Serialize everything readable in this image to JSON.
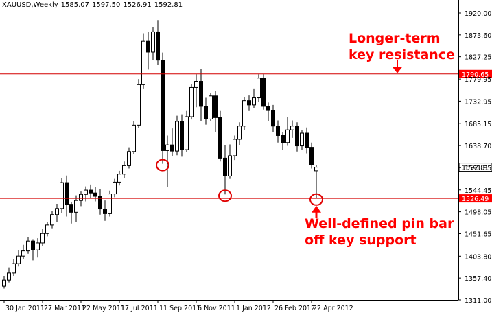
{
  "header": {
    "symbol": "XAUUSD,Weekly",
    "open": "1585.07",
    "high": "1597.50",
    "low": "1526.91",
    "close": "1592.81"
  },
  "annotations": {
    "resistance_line1": "Longer-term",
    "resistance_line2": "key resistance",
    "support_line1": "Well-defined pin bar",
    "support_line2": "off key support"
  },
  "colors": {
    "candle_outline": "#000000",
    "bull_fill": "#ffffff",
    "bear_fill": "#000000",
    "level_line": "#d40000",
    "annotation": "#ff0000",
    "price_tag": "#ff0000"
  },
  "chart_data": {
    "type": "candlestick",
    "title": "XAUUSD,Weekly",
    "ylim": [
      1311.0,
      1920.0
    ],
    "yticks": [
      "1920.00",
      "1873.60",
      "1827.25",
      "1779.95",
      "1732.95",
      "1685.15",
      "1638.70",
      "1591.85",
      "1544.45",
      "1498.05",
      "1451.65",
      "1403.80",
      "1357.40",
      "1311.00"
    ],
    "xticks": [
      {
        "index": 0,
        "label": "30 Jan 2011"
      },
      {
        "index": 8,
        "label": "27 Mar 2011"
      },
      {
        "index": 16,
        "label": "22 May 2011"
      },
      {
        "index": 24,
        "label": "17 Jul 2011"
      },
      {
        "index": 32,
        "label": "11 Sep 2011"
      },
      {
        "index": 40,
        "label": "6 Nov 2011"
      },
      {
        "index": 48,
        "label": "1 Jan 2012"
      },
      {
        "index": 56,
        "label": "26 Feb 2012"
      },
      {
        "index": 64,
        "label": "22 Apr 2012"
      }
    ],
    "levels": [
      {
        "name": "resistance",
        "value": 1790.65,
        "tag": "1790.65"
      },
      {
        "name": "support",
        "value": 1526.49,
        "tag": "1526.49"
      }
    ],
    "current_price": {
      "value": 1592.81,
      "tag": "1592.81"
    },
    "pin_bar_markers": [
      33,
      46,
      65
    ],
    "ohlc": [
      [
        1340,
        1362,
        1335,
        1353
      ],
      [
        1353,
        1380,
        1348,
        1368
      ],
      [
        1368,
        1398,
        1362,
        1388
      ],
      [
        1388,
        1416,
        1382,
        1404
      ],
      [
        1404,
        1428,
        1398,
        1415
      ],
      [
        1415,
        1445,
        1409,
        1436
      ],
      [
        1436,
        1440,
        1395,
        1417
      ],
      [
        1417,
        1442,
        1401,
        1432
      ],
      [
        1432,
        1462,
        1425,
        1452
      ],
      [
        1452,
        1476,
        1446,
        1470
      ],
      [
        1470,
        1500,
        1463,
        1492
      ],
      [
        1492,
        1515,
        1476,
        1505
      ],
      [
        1505,
        1570,
        1496,
        1560
      ],
      [
        1560,
        1575,
        1488,
        1514
      ],
      [
        1514,
        1518,
        1473,
        1497
      ],
      [
        1497,
        1533,
        1476,
        1522
      ],
      [
        1522,
        1541,
        1510,
        1535
      ],
      [
        1535,
        1552,
        1520,
        1544
      ],
      [
        1544,
        1556,
        1528,
        1538
      ],
      [
        1538,
        1551,
        1520,
        1531
      ],
      [
        1531,
        1546,
        1492,
        1504
      ],
      [
        1504,
        1522,
        1479,
        1494
      ],
      [
        1494,
        1543,
        1488,
        1536
      ],
      [
        1536,
        1568,
        1529,
        1561
      ],
      [
        1561,
        1585,
        1554,
        1578
      ],
      [
        1578,
        1605,
        1570,
        1596
      ],
      [
        1596,
        1635,
        1590,
        1626
      ],
      [
        1626,
        1690,
        1620,
        1682
      ],
      [
        1682,
        1780,
        1676,
        1768
      ],
      [
        1768,
        1877,
        1760,
        1860
      ],
      [
        1860,
        1880,
        1800,
        1837
      ],
      [
        1837,
        1890,
        1820,
        1880
      ],
      [
        1880,
        1905,
        1810,
        1820
      ],
      [
        1820,
        1836,
        1600,
        1628
      ],
      [
        1628,
        1660,
        1550,
        1640
      ],
      [
        1640,
        1675,
        1616,
        1627
      ],
      [
        1627,
        1702,
        1618,
        1690
      ],
      [
        1690,
        1705,
        1615,
        1630
      ],
      [
        1630,
        1712,
        1625,
        1700
      ],
      [
        1700,
        1770,
        1694,
        1762
      ],
      [
        1762,
        1790,
        1720,
        1775
      ],
      [
        1775,
        1802,
        1690,
        1722
      ],
      [
        1722,
        1740,
        1683,
        1695
      ],
      [
        1695,
        1750,
        1690,
        1744
      ],
      [
        1744,
        1755,
        1668,
        1698
      ],
      [
        1698,
        1712,
        1605,
        1612
      ],
      [
        1612,
        1640,
        1535,
        1574
      ],
      [
        1574,
        1641,
        1568,
        1617
      ],
      [
        1617,
        1660,
        1608,
        1652
      ],
      [
        1652,
        1688,
        1640,
        1680
      ],
      [
        1680,
        1742,
        1672,
        1734
      ],
      [
        1734,
        1745,
        1712,
        1725
      ],
      [
        1725,
        1760,
        1718,
        1740
      ],
      [
        1740,
        1790,
        1731,
        1782
      ],
      [
        1782,
        1790,
        1715,
        1722
      ],
      [
        1722,
        1730,
        1690,
        1713
      ],
      [
        1713,
        1725,
        1668,
        1680
      ],
      [
        1680,
        1692,
        1645,
        1660
      ],
      [
        1660,
        1668,
        1630,
        1645
      ],
      [
        1645,
        1700,
        1638,
        1672
      ],
      [
        1672,
        1692,
        1655,
        1680
      ],
      [
        1680,
        1688,
        1626,
        1638
      ],
      [
        1638,
        1672,
        1630,
        1665
      ],
      [
        1665,
        1677,
        1622,
        1635
      ],
      [
        1635,
        1645,
        1590,
        1598
      ],
      [
        1585.07,
        1597.5,
        1526.91,
        1592.81
      ]
    ]
  }
}
